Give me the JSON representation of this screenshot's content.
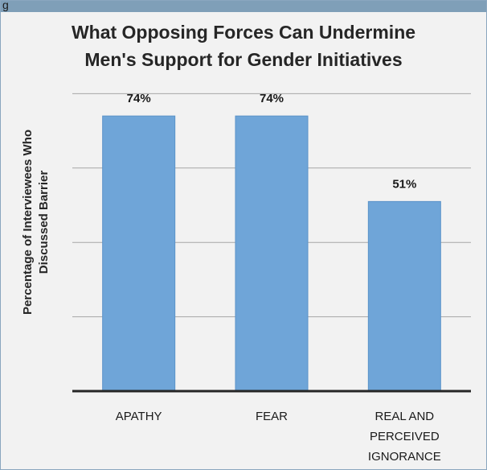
{
  "header": {
    "band_label": "g"
  },
  "chart_data": {
    "type": "bar",
    "title_lines": [
      "What Opposing Forces Can Undermine",
      "Men's Support for Gender Initiatives"
    ],
    "ylabel_lines": [
      "Percentage of Interviewees Who",
      "Discussed Barrier"
    ],
    "xlabel": "",
    "categories": [
      [
        "APATHY"
      ],
      [
        "FEAR"
      ],
      [
        "REAL AND",
        "PERCEIVED",
        "IGNORANCE"
      ]
    ],
    "values": [
      74,
      74,
      51
    ],
    "data_labels": [
      "74%",
      "74%",
      "51%"
    ],
    "ylim": [
      0,
      100
    ],
    "gridline_values": [
      20,
      40,
      60,
      80
    ],
    "grid": true,
    "legend": "none",
    "colors": {
      "bar": "#6fa5d8",
      "bar_edge": "#5b93c9",
      "grid": "#a6a6a6",
      "axis": "#262626",
      "background": "#f2f2f2",
      "band": "#7f9fb8"
    }
  }
}
